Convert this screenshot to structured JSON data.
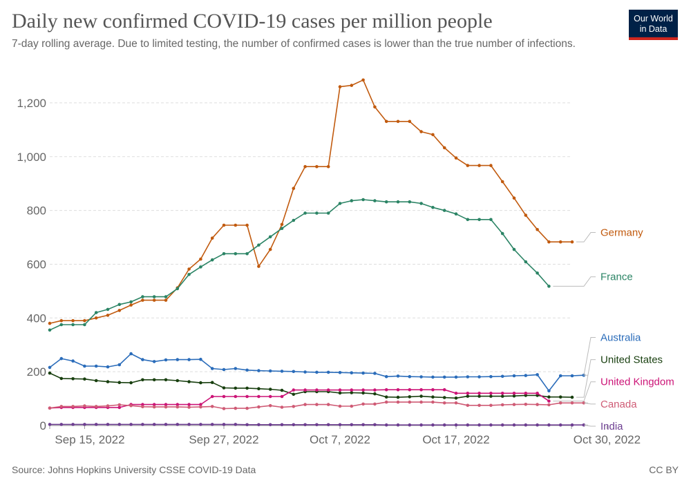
{
  "header": {
    "title": "Daily new confirmed COVID-19 cases per million people",
    "subtitle": "7-day rolling average. Due to limited testing, the number of confirmed cases is lower than the true number of infections.",
    "logo_line1": "Our World",
    "logo_line2": "in Data"
  },
  "footer": {
    "source": "Source: Johns Hopkins University CSSE COVID-19 Data",
    "license": "CC BY"
  },
  "colors": {
    "Germany": "#c15a0e",
    "France": "#2b8465",
    "Australia": "#2a6cba",
    "United States": "#183f0f",
    "United Kingdom": "#cc1477",
    "Canada": "#cf5b75",
    "India": "#6d3e91"
  },
  "chart_data": {
    "type": "line",
    "x_start": "2022-09-12",
    "x_ticks": [
      "Sep 15, 2022",
      "Sep 27, 2022",
      "Oct 7, 2022",
      "Oct 17, 2022",
      "Oct 30, 2022"
    ],
    "x_tick_dates": [
      "2022-09-15",
      "2022-09-27",
      "2022-10-07",
      "2022-10-17",
      "2022-10-30"
    ],
    "y_ticks": [
      "0",
      "200",
      "400",
      "600",
      "800",
      "1,000",
      "1,200"
    ],
    "y_tick_values": [
      0,
      200,
      400,
      600,
      800,
      1000,
      1200
    ],
    "ylim": [
      0,
      1300
    ],
    "grid": true,
    "legend": "right",
    "series": [
      {
        "name": "Germany",
        "start": "2022-09-12",
        "values": [
          380,
          390,
          390,
          390,
          400,
          410,
          428,
          448,
          466,
          466,
          466,
          512,
          582,
          619,
          697,
          745,
          745,
          745,
          592,
          655,
          748,
          882,
          963,
          963,
          963,
          1260,
          1265,
          1285,
          1185,
          1131,
          1131,
          1131,
          1093,
          1082,
          1033,
          995,
          967,
          967,
          967,
          907,
          846,
          782,
          729,
          683,
          683,
          683
        ]
      },
      {
        "name": "France",
        "start": "2022-09-12",
        "values": [
          355,
          375,
          375,
          375,
          420,
          432,
          450,
          460,
          479,
          479,
          479,
          509,
          562,
          590,
          616,
          639,
          639,
          639,
          671,
          702,
          733,
          763,
          790,
          790,
          790,
          826,
          836,
          840,
          836,
          832,
          832,
          832,
          826,
          811,
          800,
          787,
          766,
          766,
          766,
          714,
          655,
          609,
          567,
          518
        ]
      },
      {
        "name": "Australia",
        "start": "2022-09-12",
        "values": [
          216,
          249,
          240,
          221,
          221,
          218,
          226,
          267,
          245,
          238,
          244,
          245,
          245,
          246,
          212,
          208,
          212,
          206,
          204,
          203,
          202,
          201,
          199,
          198,
          198,
          197,
          196,
          195,
          194,
          182,
          184,
          182,
          181,
          180,
          180,
          180,
          181,
          181,
          182,
          183,
          185,
          186,
          189,
          129,
          185,
          185,
          187
        ]
      },
      {
        "name": "United States",
        "start": "2022-09-12",
        "values": [
          195,
          175,
          174,
          173,
          167,
          163,
          160,
          159,
          170,
          170,
          170,
          167,
          163,
          159,
          160,
          140,
          139,
          139,
          137,
          135,
          131,
          116,
          126,
          126,
          126,
          121,
          122,
          121,
          118,
          106,
          105,
          107,
          109,
          106,
          104,
          102,
          109,
          109,
          109,
          109,
          110,
          112,
          112,
          106,
          106,
          105
        ]
      },
      {
        "name": "United Kingdom",
        "start": "2022-09-12",
        "values": [
          65,
          67,
          67,
          67,
          67,
          67,
          67,
          78,
          78,
          78,
          78,
          78,
          78,
          78,
          108,
          108,
          108,
          108,
          108,
          108,
          108,
          132,
          132,
          132,
          132,
          132,
          132,
          132,
          132,
          133,
          133,
          133,
          133,
          133,
          133,
          120,
          120,
          120,
          120,
          120,
          120,
          120,
          120,
          91
        ]
      },
      {
        "name": "Canada",
        "start": "2022-09-12",
        "values": [
          65,
          71,
          71,
          73,
          71,
          73,
          77,
          74,
          70,
          69,
          69,
          69,
          68,
          69,
          71,
          63,
          64,
          64,
          69,
          74,
          68,
          71,
          78,
          78,
          78,
          72,
          72,
          80,
          80,
          87,
          87,
          87,
          87,
          87,
          84,
          84,
          75,
          75,
          75,
          77,
          78,
          79,
          78,
          77,
          84,
          84,
          84
        ]
      },
      {
        "name": "India",
        "start": "2022-09-12",
        "values": [
          4,
          4,
          4,
          4,
          4,
          4,
          4,
          4,
          4,
          4,
          4,
          4,
          4,
          4,
          4,
          4,
          4,
          3,
          3,
          3,
          3,
          3,
          3,
          3,
          3,
          3,
          3,
          3,
          3,
          2,
          2,
          2,
          2,
          2,
          2,
          2,
          2,
          2,
          2,
          2,
          2,
          2,
          2,
          2,
          2,
          2,
          2
        ]
      }
    ]
  }
}
